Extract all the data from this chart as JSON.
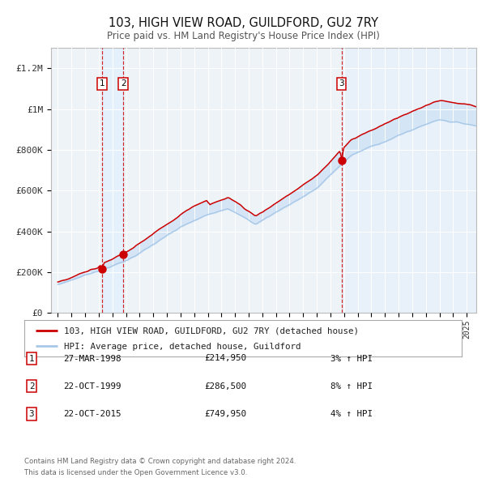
{
  "title": "103, HIGH VIEW ROAD, GUILDFORD, GU2 7RY",
  "subtitle": "Price paid vs. HM Land Registry's House Price Index (HPI)",
  "footnote1": "Contains HM Land Registry data © Crown copyright and database right 2024.",
  "footnote2": "This data is licensed under the Open Government Licence v3.0.",
  "legend_line1": "103, HIGH VIEW ROAD, GUILDFORD, GU2 7RY (detached house)",
  "legend_line2": "HPI: Average price, detached house, Guildford",
  "transactions": [
    {
      "num": 1,
      "date": "27-MAR-1998",
      "price": 214950,
      "pct": "3%",
      "arrow": "↑",
      "rel": "HPI",
      "year_x": 1998.23
    },
    {
      "num": 2,
      "date": "22-OCT-1999",
      "price": 286500,
      "pct": "8%",
      "arrow": "↑",
      "rel": "HPI",
      "year_x": 1999.81
    },
    {
      "num": 3,
      "date": "22-OCT-2015",
      "price": 749950,
      "pct": "4%",
      "arrow": "↑",
      "rel": "HPI",
      "year_x": 2015.81
    }
  ],
  "hpi_color": "#a8c8e8",
  "price_color": "#cc0000",
  "dot_color": "#cc0000",
  "vline_color": "#cc0000",
  "shade_color_between": "#cce0f5",
  "shade_color_span": "#ddeeff",
  "background_color": "#eef3f8",
  "grid_color": "#ffffff",
  "ylabel_color": "#333333",
  "ylim": [
    0,
    1300000
  ],
  "xlim_start": 1994.5,
  "xlim_end": 2025.7,
  "yticks": [
    0,
    200000,
    400000,
    600000,
    800000,
    1000000,
    1200000
  ],
  "ylabels": [
    "£0",
    "£200K",
    "£400K",
    "£600K",
    "£800K",
    "£1M",
    "£1.2M"
  ]
}
